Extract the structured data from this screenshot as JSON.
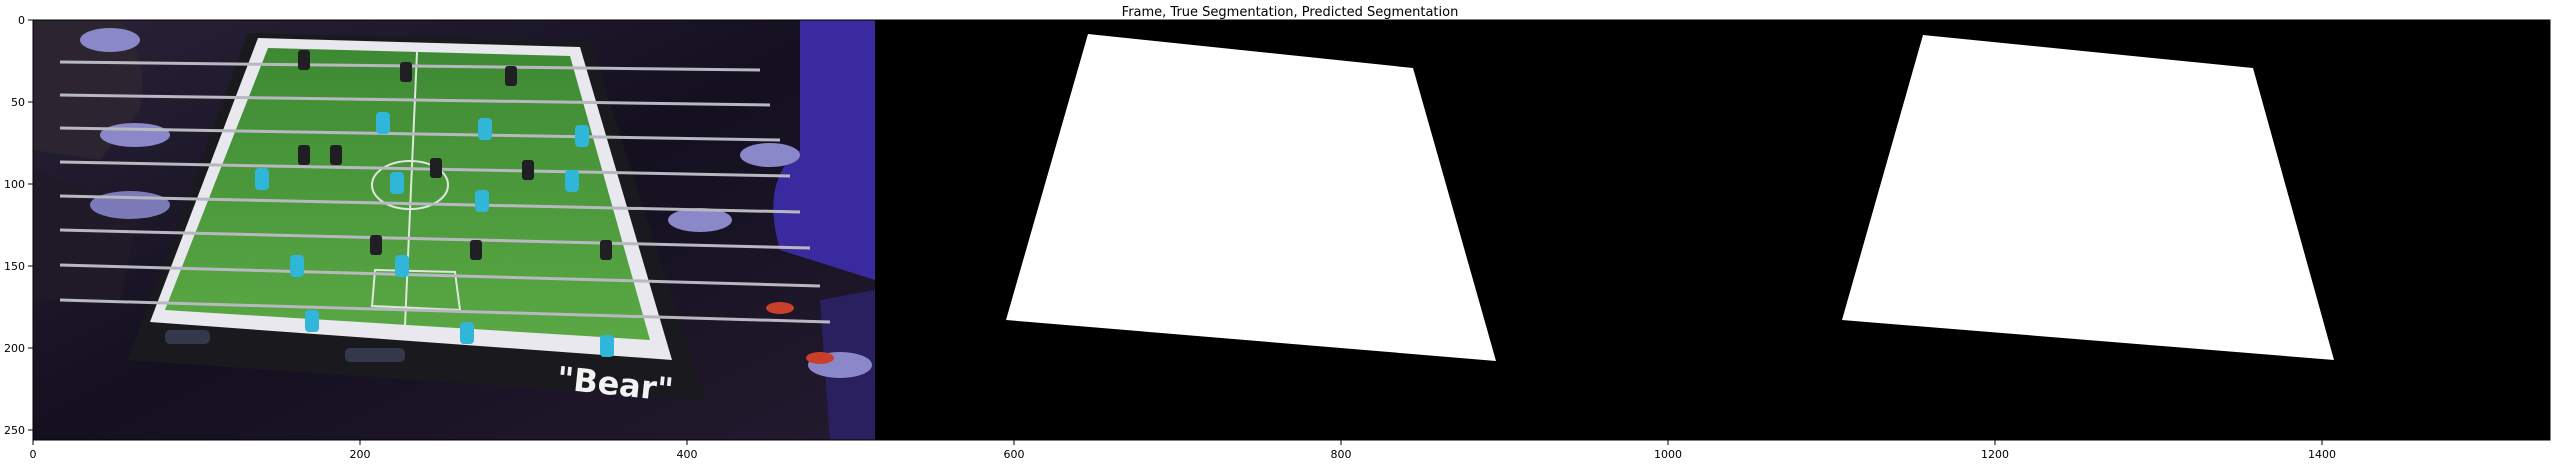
{
  "figure": {
    "title": "Frame, True Segmentation, Predicted Segmentation"
  },
  "axes": {
    "x_ticks": [
      "0",
      "200",
      "400",
      "600",
      "800",
      "1000",
      "1200",
      "1400"
    ],
    "y_ticks": [
      "0",
      "50",
      "100",
      "150",
      "200",
      "250"
    ]
  },
  "frame_image": {
    "label": "\"Bear\"",
    "table_color": "#4a9a3a",
    "background_color": "#1a1626"
  },
  "mask_colors": {
    "background": "#000000",
    "foreground": "#ffffff"
  }
}
